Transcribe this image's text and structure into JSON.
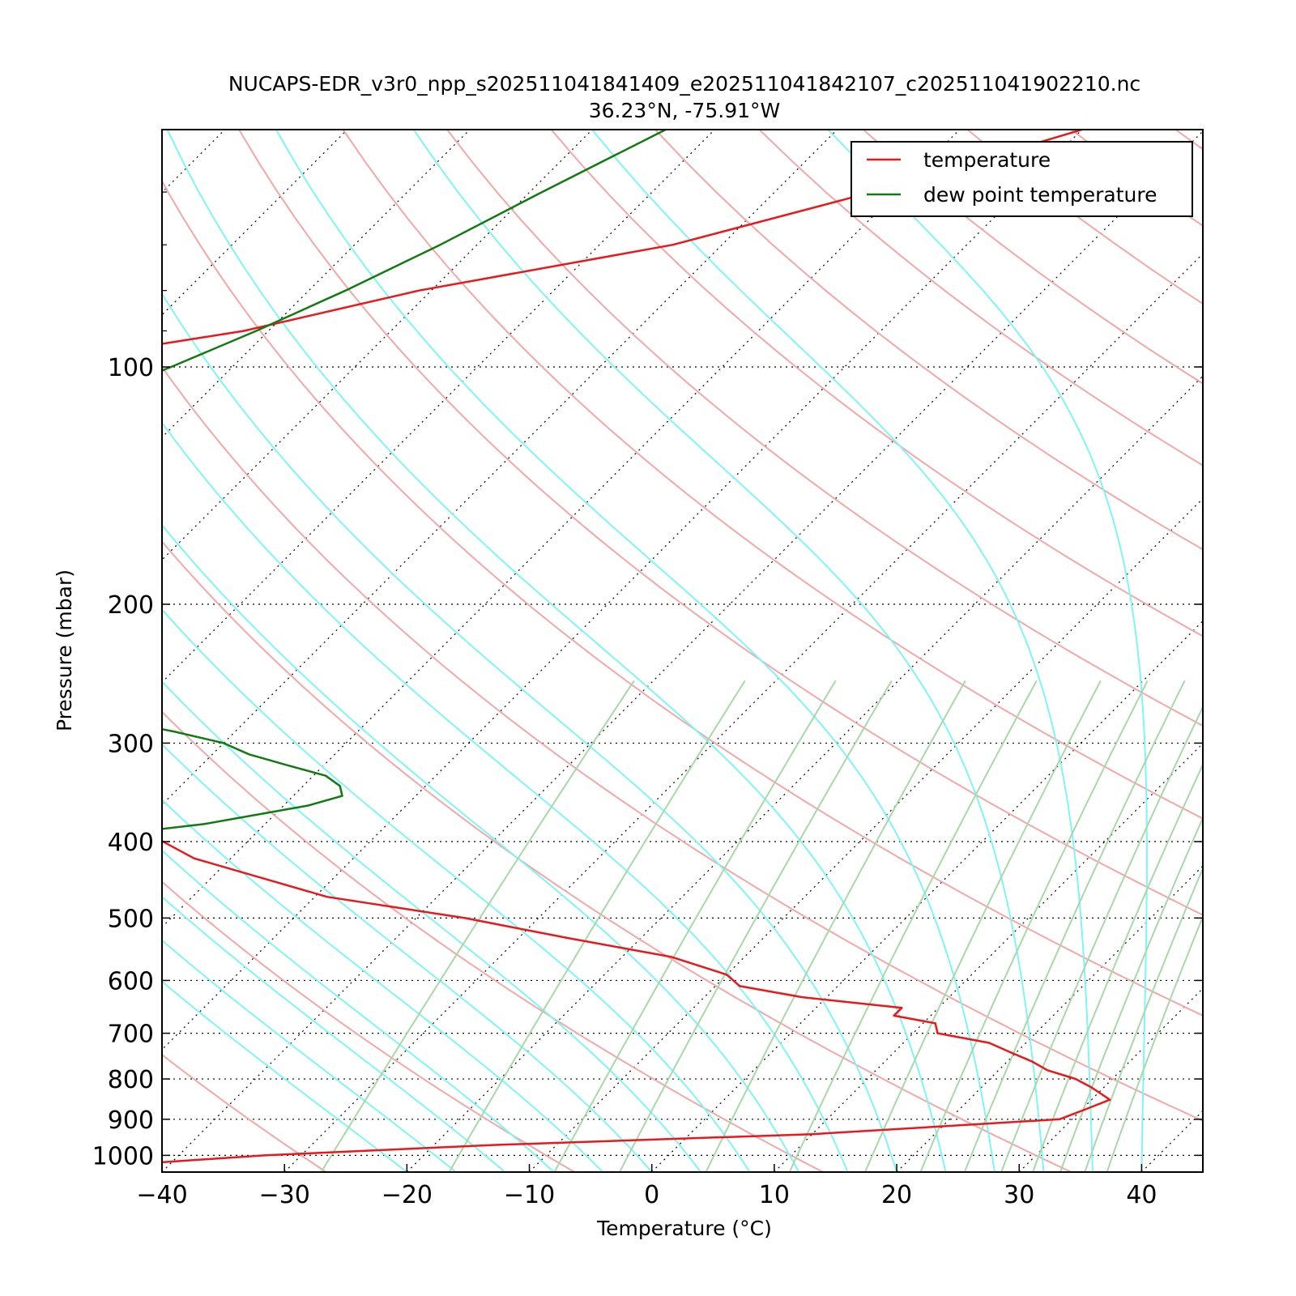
{
  "chart_data": {
    "type": "line",
    "title": "NUCAPS-EDR_v3r0_npp_s202511041841409_e202511041842107_c202511041902210.nc",
    "subtitle": "36.23°N, -75.91°W",
    "xlabel": "Temperature (°C)",
    "ylabel": "Pressure (mbar)",
    "xlim": [
      -40,
      45
    ],
    "ylim": [
      1050,
      50
    ],
    "y_scale": "log",
    "x_ticks": [
      "−40",
      "−30",
      "−20",
      "−10",
      "0",
      "10",
      "20",
      "30",
      "40"
    ],
    "x_tick_values": [
      -40,
      -30,
      -20,
      -10,
      0,
      10,
      20,
      30,
      40
    ],
    "y_ticks": [
      "100",
      "200",
      "300",
      "400",
      "500",
      "600",
      "700",
      "800",
      "900",
      "1000"
    ],
    "y_tick_values": [
      100,
      200,
      300,
      400,
      500,
      600,
      700,
      800,
      900,
      1000
    ],
    "skew_degrees": 45,
    "grid": true,
    "legend": {
      "position": "top-right",
      "entries": [
        "temperature",
        "dew point temperature"
      ]
    },
    "colors": {
      "temperature": "#e8191c",
      "dewpoint": "#137a13",
      "dry_adiabat": "#f2a8a8",
      "moist_adiabat": "#7ff5f5",
      "mixing_ratio": "#a8d8a8",
      "isotherm": "#000000"
    },
    "series": [
      {
        "name": "temperature",
        "pressure": [
          1050,
          1000,
          970,
          940,
          900,
          870,
          850,
          820,
          800,
          780,
          760,
          740,
          720,
          700,
          680,
          665,
          650,
          630,
          610,
          590,
          560,
          530,
          500,
          470,
          420,
          380,
          350,
          330,
          310,
          290,
          270,
          250,
          235,
          220,
          200,
          180,
          165,
          150,
          135,
          120,
          113,
          106,
          103,
          100,
          95,
          90,
          80,
          70,
          60,
          50
        ],
        "values": [
          -52,
          -33,
          -15,
          10,
          29,
          30.5,
          31.5,
          29,
          27,
          24,
          22,
          19.5,
          17,
          12,
          11,
          7,
          7,
          -2,
          -8,
          -10,
          -16,
          -26,
          -36,
          -49,
          -63,
          -71,
          -80,
          -86,
          -92,
          -95,
          -98,
          -101,
          -105,
          -109,
          -111,
          -114,
          -117,
          -118,
          -120,
          -121,
          -121,
          -120,
          -119,
          -118,
          -110,
          -102,
          -91,
          -74,
          -62,
          -50
        ]
      },
      {
        "name": "dew point temperature",
        "pressure": [
          1050,
          1000,
          975,
          960,
          950,
          925,
          900,
          850,
          820,
          800,
          780,
          750,
          720,
          650,
          600,
          550,
          500,
          480,
          460,
          420,
          400,
          380,
          360,
          350,
          340,
          330,
          320,
          310,
          300,
          290,
          280,
          270,
          260,
          250,
          240,
          230,
          220,
          210,
          200,
          190,
          180,
          170,
          160,
          150,
          140,
          130,
          120,
          110,
          100,
          90,
          80,
          70,
          60,
          50
        ],
        "values": [
          -140,
          -114,
          -122,
          -122,
          -128,
          -118,
          -110,
          -98,
          -93,
          -93,
          -98,
          -111,
          -127,
          -139,
          -141,
          -136,
          -129,
          -126,
          -121,
          -90,
          -76,
          -65,
          -58,
          -56,
          -57,
          -59,
          -63,
          -67,
          -70,
          -75,
          -81,
          -86,
          -92,
          -97,
          -99,
          -99,
          -102,
          -104,
          -108,
          -111,
          -113,
          -117,
          -118,
          -118,
          -117,
          -115,
          -112,
          -109,
          -105,
          -101,
          -97,
          -93,
          -89,
          -84
        ]
      }
    ]
  }
}
